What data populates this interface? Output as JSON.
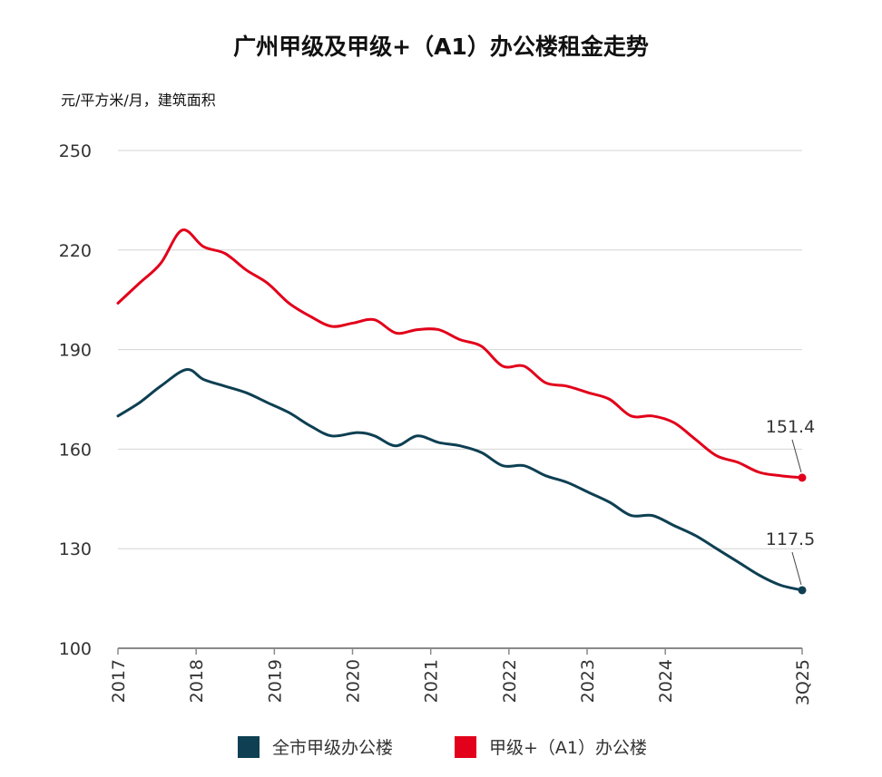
{
  "chart_data": {
    "type": "line",
    "title": "广州甲级及甲级+（A1）办公楼租金走势",
    "ylabel": "元/平方米/月，建筑面积",
    "xlabel": "",
    "ylim": [
      100,
      250
    ],
    "yticks": [
      "100",
      "130",
      "160",
      "190",
      "220",
      "250"
    ],
    "xlim": [
      2017.0,
      2025.75
    ],
    "xticks": [
      {
        "x": 2017,
        "label": "2017"
      },
      {
        "x": 2018,
        "label": "2018"
      },
      {
        "x": 2019,
        "label": "2019"
      },
      {
        "x": 2020,
        "label": "2020"
      },
      {
        "x": 2021,
        "label": "2021"
      },
      {
        "x": 2022,
        "label": "2022"
      },
      {
        "x": 2023,
        "label": "2023"
      },
      {
        "x": 2024,
        "label": "2024"
      },
      {
        "x": 2025.75,
        "label": "3Q25"
      }
    ],
    "grid": true,
    "legend_position": "bottom",
    "series": [
      {
        "name": "全市甲级办公楼",
        "color": "#0e3f52",
        "end_label": "117.5",
        "points": [
          [
            2017.0,
            170
          ],
          [
            2017.25,
            174
          ],
          [
            2017.5,
            179
          ],
          [
            2017.8,
            184
          ],
          [
            2018.0,
            181
          ],
          [
            2018.25,
            179
          ],
          [
            2018.5,
            177
          ],
          [
            2018.75,
            174
          ],
          [
            2019.0,
            171
          ],
          [
            2019.25,
            167
          ],
          [
            2019.5,
            164
          ],
          [
            2019.8,
            165
          ],
          [
            2020.0,
            164
          ],
          [
            2020.25,
            161
          ],
          [
            2020.5,
            164
          ],
          [
            2020.75,
            162
          ],
          [
            2021.0,
            161
          ],
          [
            2021.25,
            159
          ],
          [
            2021.5,
            155
          ],
          [
            2021.75,
            155
          ],
          [
            2022.0,
            152
          ],
          [
            2022.25,
            150
          ],
          [
            2022.5,
            147
          ],
          [
            2022.75,
            144
          ],
          [
            2023.0,
            140
          ],
          [
            2023.25,
            140
          ],
          [
            2023.5,
            137
          ],
          [
            2023.75,
            134
          ],
          [
            2024.0,
            130
          ],
          [
            2024.25,
            126
          ],
          [
            2024.5,
            122
          ],
          [
            2024.75,
            119
          ],
          [
            2025.0,
            117.5
          ]
        ]
      },
      {
        "name": "甲级+（A1）办公楼",
        "color": "#e2001a",
        "end_label": "151.4",
        "points": [
          [
            2017.0,
            204
          ],
          [
            2017.25,
            210
          ],
          [
            2017.5,
            216
          ],
          [
            2017.75,
            226
          ],
          [
            2018.0,
            221
          ],
          [
            2018.25,
            219
          ],
          [
            2018.5,
            214
          ],
          [
            2018.75,
            210
          ],
          [
            2019.0,
            204
          ],
          [
            2019.25,
            200
          ],
          [
            2019.5,
            197
          ],
          [
            2019.75,
            198
          ],
          [
            2020.0,
            199
          ],
          [
            2020.25,
            195
          ],
          [
            2020.5,
            196
          ],
          [
            2020.75,
            196
          ],
          [
            2021.0,
            193
          ],
          [
            2021.25,
            191
          ],
          [
            2021.5,
            185
          ],
          [
            2021.75,
            185
          ],
          [
            2022.0,
            180
          ],
          [
            2022.25,
            179
          ],
          [
            2022.5,
            177
          ],
          [
            2022.75,
            175
          ],
          [
            2023.0,
            170
          ],
          [
            2023.25,
            170
          ],
          [
            2023.5,
            168
          ],
          [
            2023.75,
            163
          ],
          [
            2024.0,
            158
          ],
          [
            2024.25,
            156
          ],
          [
            2024.5,
            153
          ],
          [
            2024.75,
            152
          ],
          [
            2025.0,
            151.4
          ]
        ]
      }
    ]
  }
}
